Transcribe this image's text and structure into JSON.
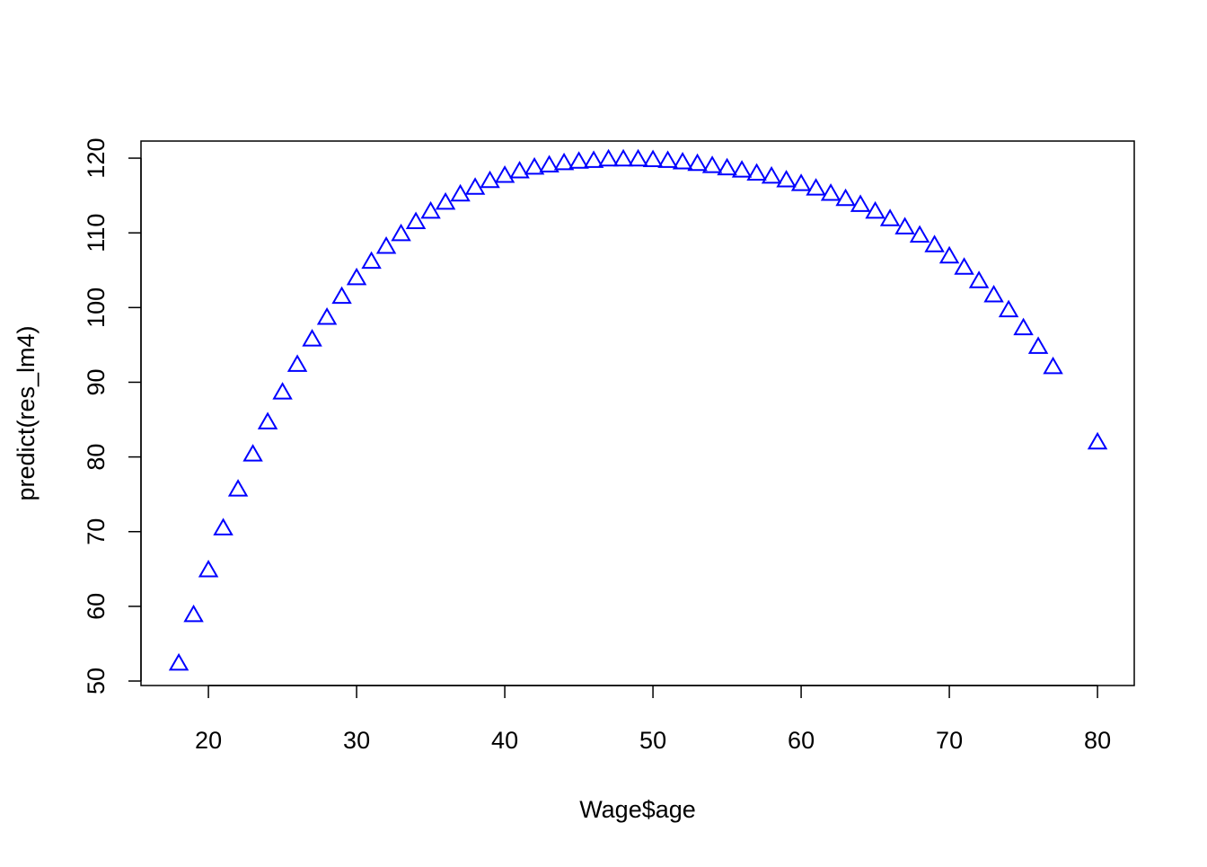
{
  "chart_data": {
    "type": "scatter",
    "x_label": "Wage$age",
    "y_label": "predict(res_lm4)",
    "color": "#0000ff",
    "x": [
      18,
      19,
      20,
      21,
      22,
      23,
      24,
      25,
      26,
      27,
      28,
      29,
      30,
      31,
      32,
      33,
      34,
      35,
      36,
      37,
      38,
      39,
      40,
      41,
      42,
      43,
      44,
      45,
      46,
      47,
      48,
      49,
      50,
      51,
      52,
      53,
      54,
      55,
      56,
      57,
      58,
      59,
      60,
      61,
      62,
      63,
      64,
      65,
      66,
      67,
      68,
      69,
      70,
      71,
      72,
      73,
      74,
      75,
      76,
      77,
      80
    ],
    "values": [
      52.3,
      58.8,
      64.8,
      70.4,
      75.6,
      80.3,
      84.6,
      88.6,
      92.3,
      95.7,
      98.6,
      101.4,
      103.9,
      106.1,
      108.1,
      109.8,
      111.4,
      112.8,
      114.0,
      115.1,
      116.0,
      116.9,
      117.6,
      118.2,
      118.7,
      119.0,
      119.3,
      119.5,
      119.6,
      119.8,
      119.8,
      119.8,
      119.7,
      119.6,
      119.4,
      119.2,
      118.9,
      118.6,
      118.3,
      117.9,
      117.5,
      117.0,
      116.5,
      115.9,
      115.2,
      114.5,
      113.7,
      112.8,
      111.8,
      110.7,
      109.6,
      108.3,
      106.8,
      105.3,
      103.5,
      101.6,
      99.6,
      97.2,
      94.7,
      92.0,
      81.9
    ],
    "xlim": [
      15.45,
      82.48
    ],
    "ylim": [
      49.4,
      122.29
    ],
    "xticks": [
      20,
      30,
      40,
      50,
      60,
      70,
      80
    ],
    "yticks": [
      50,
      60,
      70,
      80,
      90,
      100,
      110,
      120
    ]
  }
}
